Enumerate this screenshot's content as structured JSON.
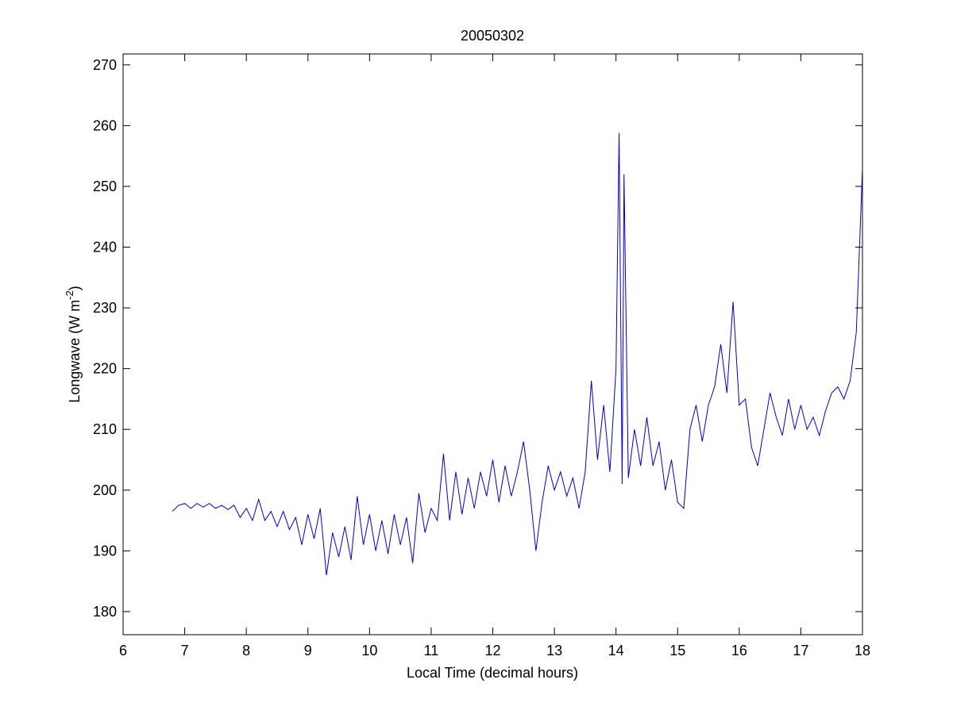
{
  "chart_data": {
    "type": "line",
    "title": "20050302",
    "xlabel": "Local Time (decimal hours)",
    "ylabel_parts": [
      "Longwave (W m",
      "-2",
      ")"
    ],
    "xlim": [
      6,
      18
    ],
    "xticks": [
      6,
      7,
      8,
      9,
      10,
      11,
      12,
      13,
      14,
      15,
      16,
      17,
      18
    ],
    "ylim": [
      176.2,
      271.8
    ],
    "yticks": [
      180,
      190,
      200,
      210,
      220,
      230,
      240,
      250,
      260,
      270
    ],
    "grid": false,
    "series": [
      {
        "color": "#0000cc",
        "x": [
          6.8,
          6.9,
          7.0,
          7.1,
          7.2,
          7.3,
          7.4,
          7.5,
          7.6,
          7.7,
          7.8,
          7.9,
          8.0,
          8.1,
          8.2,
          8.3,
          8.4,
          8.5,
          8.6,
          8.7,
          8.8,
          8.9,
          9.0,
          9.1,
          9.2,
          9.3,
          9.4,
          9.5,
          9.6,
          9.7,
          9.8,
          9.9,
          10.0,
          10.1,
          10.2,
          10.3,
          10.4,
          10.5,
          10.6,
          10.7,
          10.8,
          10.9,
          11.0,
          11.1,
          11.2,
          11.3,
          11.4,
          11.5,
          11.6,
          11.7,
          11.8,
          11.9,
          12.0,
          12.1,
          12.2,
          12.3,
          12.4,
          12.5,
          12.6,
          12.7,
          12.8,
          12.9,
          13.0,
          13.1,
          13.2,
          13.3,
          13.4,
          13.5,
          13.6,
          13.7,
          13.8,
          13.9,
          14.0,
          14.05,
          14.1,
          14.13,
          14.2,
          14.3,
          14.4,
          14.5,
          14.6,
          14.7,
          14.8,
          14.9,
          15.0,
          15.1,
          15.2,
          15.3,
          15.4,
          15.5,
          15.6,
          15.7,
          15.8,
          15.9,
          16.0,
          16.1,
          16.2,
          16.3,
          16.4,
          16.5,
          16.6,
          16.7,
          16.8,
          16.9,
          17.0,
          17.1,
          17.2,
          17.3,
          17.4,
          17.5,
          17.6,
          17.7,
          17.8,
          17.9,
          18.0
        ],
        "values": [
          196.5,
          197.5,
          197.8,
          197,
          197.8,
          197.2,
          197.8,
          197,
          197.5,
          196.8,
          197.5,
          195.5,
          197,
          195,
          198.5,
          195,
          196.5,
          194,
          196.5,
          193.5,
          195.5,
          191,
          196,
          192,
          197,
          186,
          193,
          189,
          194,
          188.5,
          199,
          191,
          196,
          190,
          195,
          189.5,
          196,
          191,
          195.5,
          188,
          199.5,
          193,
          197,
          195,
          206,
          195,
          203,
          196,
          202,
          197,
          203,
          199,
          205,
          198,
          204,
          199,
          203,
          208,
          200,
          190,
          198,
          204,
          200,
          203,
          199,
          202,
          197,
          203,
          218,
          205,
          214,
          203,
          220,
          258.8,
          201,
          252,
          202,
          210,
          204,
          212,
          204,
          208,
          200,
          205,
          198,
          197,
          210,
          214,
          208,
          214,
          217,
          224,
          216,
          231,
          214,
          215,
          207,
          204,
          210,
          216,
          212,
          209,
          215,
          210,
          214,
          210,
          212,
          209,
          213,
          216,
          217,
          215,
          218,
          226,
          253
        ]
      }
    ]
  }
}
